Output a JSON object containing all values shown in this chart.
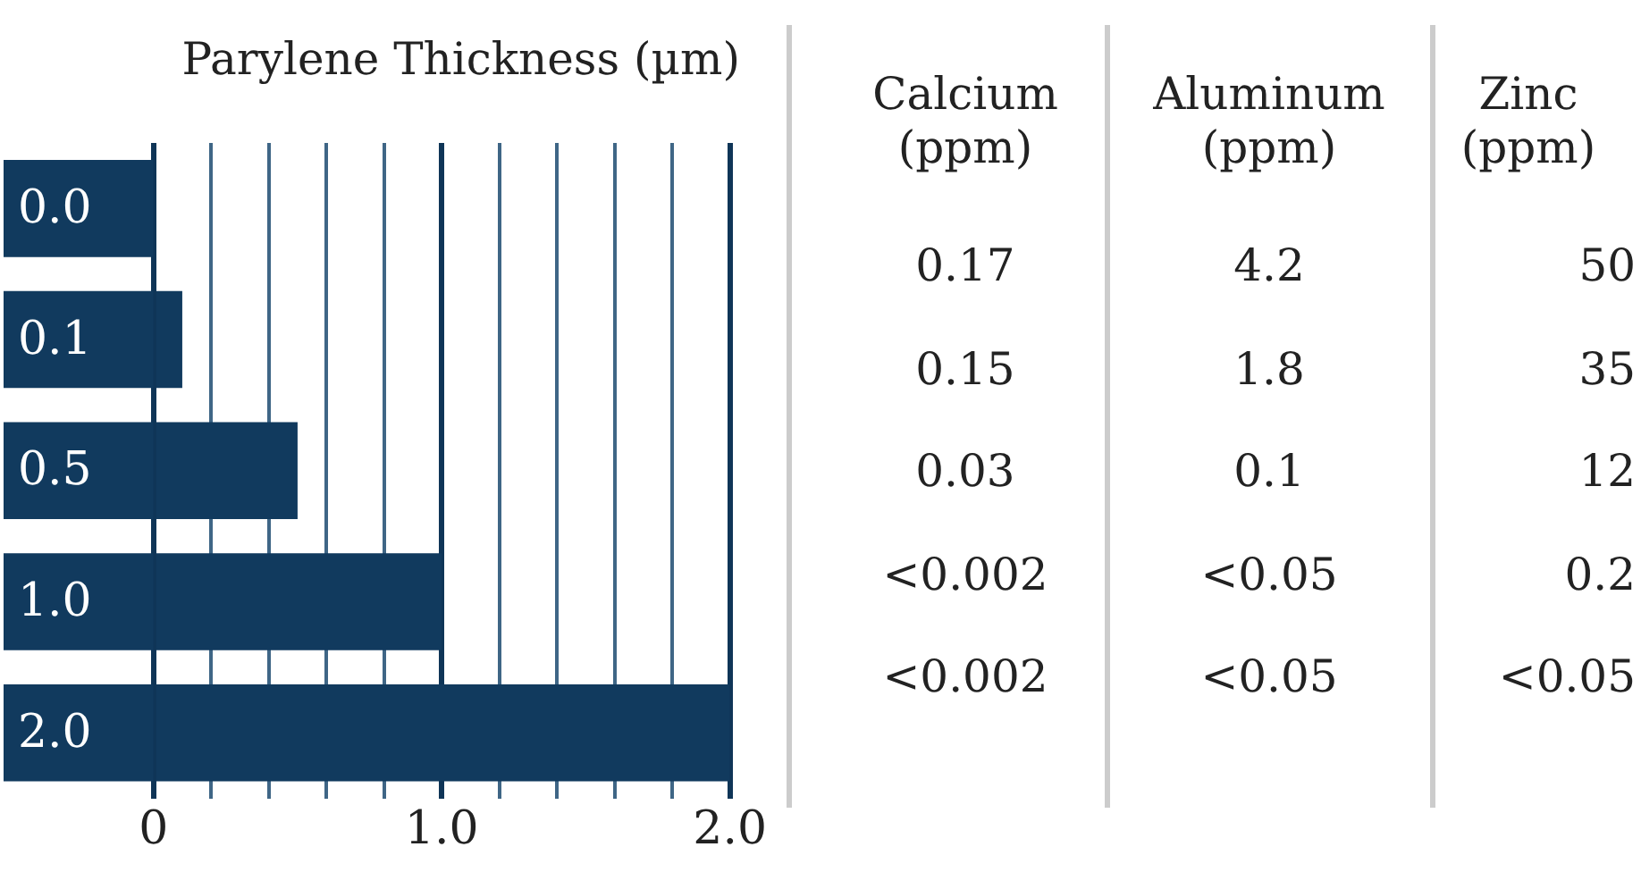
{
  "chart_data": [
    {
      "type": "bar",
      "orientation": "horizontal",
      "title": "Parylene Thickness (µm)",
      "categories": [
        null,
        null,
        null,
        null,
        null
      ],
      "values": [
        0,
        0.1,
        0.5,
        1.0,
        2.0
      ],
      "value_labels": [
        "0.0",
        "0.1",
        "0.5",
        "1.0",
        "2.0"
      ],
      "color": "#113a5e",
      "xlim": [
        -0.52,
        2.0
      ],
      "xticks": [
        0,
        {
          "value": 0.2,
          "label": null
        },
        {
          "value": 0.4,
          "label": null
        },
        {
          "value": 0.6,
          "label": null
        },
        {
          "value": 0.8,
          "label": null
        },
        {
          "value": 1.0,
          "label": "1.0"
        },
        {
          "value": 1.2,
          "label": null
        },
        {
          "value": 1.4,
          "label": null
        },
        {
          "value": 1.6,
          "label": null
        },
        {
          "value": 1.8,
          "label": null
        },
        {
          "value": 2.0,
          "label": "2.0"
        }
      ],
      "grid": "x",
      "tick_labels": "x",
      "legend": false
    },
    {
      "type": "other",
      "categories": [
        "Calcium (ppm)",
        "Aluminum (ppm)",
        "Zinc (ppm)"
      ],
      "cell_labels": [
        [
          "0.17",
          "4.2",
          "50"
        ],
        [
          "0.15",
          "1.8",
          "35"
        ],
        [
          "0.03",
          "0.1",
          "12"
        ],
        [
          "<0.002",
          "<0.05",
          "0.2"
        ],
        [
          "<0.002",
          "<0.05",
          "<0.05"
        ]
      ]
    }
  ]
}
